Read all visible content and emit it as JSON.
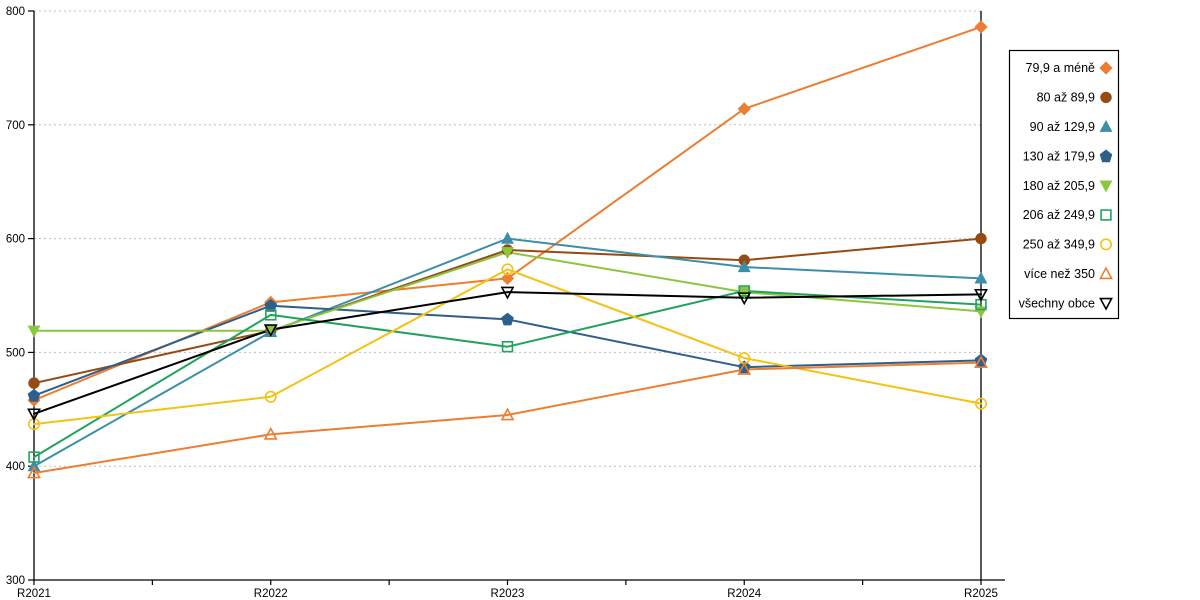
{
  "chart_data": {
    "type": "line",
    "title": "",
    "xlabel": "",
    "ylabel": "",
    "categories": [
      "R2021",
      "R2022",
      "R2023",
      "R2024",
      "R2025"
    ],
    "ylim": [
      300,
      800
    ],
    "y_ticks": [
      "300",
      "400",
      "500",
      "600",
      "700",
      "800"
    ],
    "grid": "horizontal-dashed",
    "legend_position": "right",
    "series": [
      {
        "name": "79,9 a méně",
        "marker": "diamond",
        "style": "filled",
        "color": "#ED7D31",
        "values": [
          458,
          544,
          565,
          714,
          786
        ]
      },
      {
        "name": "80 až 89,9",
        "marker": "circle",
        "style": "filled",
        "color": "#964B12",
        "values": [
          473,
          519,
          590,
          581,
          600
        ]
      },
      {
        "name": "90 až 129,9",
        "marker": "triangle-up",
        "style": "filled",
        "color": "#3D8EA8",
        "values": [
          400,
          518,
          600,
          575,
          565
        ]
      },
      {
        "name": "130 až 179,9",
        "marker": "pentagon",
        "style": "filled",
        "color": "#2E5F8C",
        "values": [
          462,
          541,
          529,
          487,
          493
        ]
      },
      {
        "name": "180 až 205,9",
        "marker": "triangle-down",
        "style": "filled",
        "color": "#8CC63F",
        "values": [
          519,
          519,
          588,
          553,
          536
        ]
      },
      {
        "name": "206 až 249,9",
        "marker": "square",
        "style": "hollow",
        "color": "#22A25D",
        "values": [
          408,
          533,
          505,
          554,
          542
        ]
      },
      {
        "name": "250 až 349,9",
        "marker": "circle",
        "style": "hollow",
        "color": "#F5C113",
        "values": [
          437,
          461,
          573,
          495,
          455
        ]
      },
      {
        "name": "více než 350",
        "marker": "triangle-up",
        "style": "hollow",
        "color": "#ED7D31",
        "values": [
          394,
          428,
          445,
          485,
          491
        ]
      },
      {
        "name": "všechny obce",
        "marker": "triangle-down",
        "style": "hollow",
        "color": "#000000",
        "values": [
          446,
          520,
          553,
          548,
          551
        ]
      }
    ],
    "colors": {
      "gridline": "#BFBFBF",
      "axis": "#000000",
      "background": "#FFFFFF",
      "legend_border": "#000000"
    }
  }
}
